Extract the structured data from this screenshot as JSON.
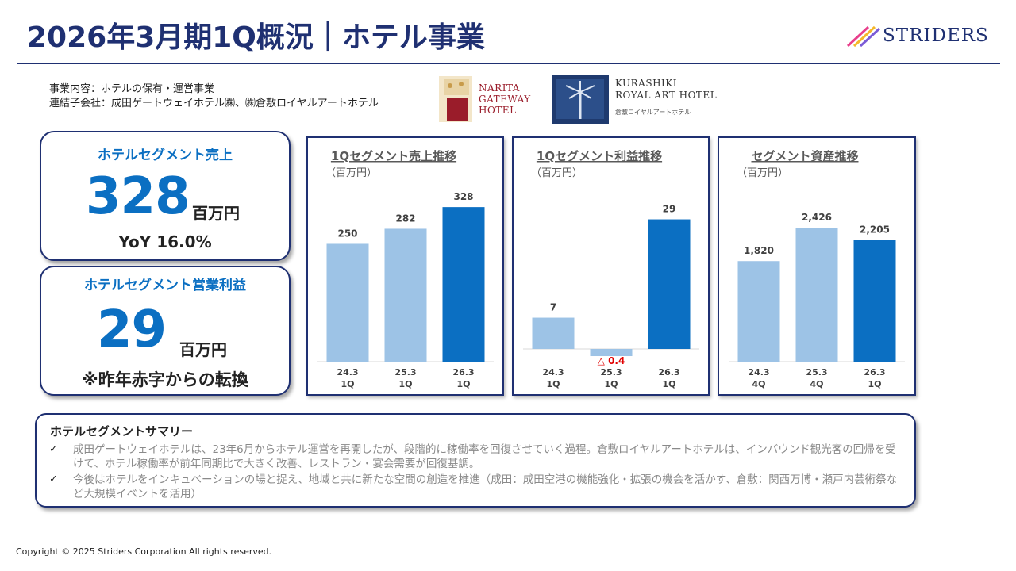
{
  "header": {
    "title": "2026年3月期1Q概況｜ホテル事業",
    "logo_text": "STRIDERS"
  },
  "description": {
    "line1": "事業内容：ホテルの保有・運営事業",
    "line2": "連結子会社：成田ゲートウェイホテル㈱、㈱倉敷ロイヤルアートホテル"
  },
  "hotel_logos": {
    "narita": [
      "NARITA",
      "GATEWAY",
      "HOTEL"
    ],
    "kurashiki": [
      "KURASHIKI",
      "ROYAL ART HOTEL"
    ],
    "kurashiki_sub": "倉敷ロイヤルアートホテル"
  },
  "kpi_sales": {
    "heading": "ホテルセグメント売上",
    "value": "328",
    "unit": "百万円",
    "footnote": "YoY  16.0%"
  },
  "kpi_profit": {
    "heading": "ホテルセグメント営業利益",
    "value": "29",
    "unit": "百万円",
    "footnote": "※昨年赤字からの転換"
  },
  "chart_data": [
    {
      "type": "bar",
      "title": "1Qセグメント売上推移",
      "subtitle": "（百万円）",
      "categories": [
        [
          "24.3",
          "1Q"
        ],
        [
          "25.3",
          "1Q"
        ],
        [
          "26.3",
          "1Q"
        ]
      ],
      "values": [
        250,
        282,
        328
      ],
      "labels": [
        "250",
        "282",
        "328"
      ],
      "colors": [
        "#9dc3e6",
        "#9dc3e6",
        "#0b6fc2"
      ],
      "ylim": [
        0,
        340
      ]
    },
    {
      "type": "bar",
      "title": "1Qセグメント利益推移",
      "subtitle": "（百万円）",
      "categories": [
        [
          "24.3",
          "1Q"
        ],
        [
          "25.3",
          "1Q"
        ],
        [
          "26.3",
          "1Q"
        ]
      ],
      "values": [
        7,
        -0.4,
        29
      ],
      "labels": [
        "7",
        "△ 0.4",
        "29"
      ],
      "colors": [
        "#9dc3e6",
        "#9dc3e6",
        "#0b6fc2"
      ],
      "negative_label_color": "#e00000",
      "ylim": [
        -1,
        33
      ]
    },
    {
      "type": "bar",
      "title": "セグメント資産推移",
      "subtitle": "（百万円）",
      "categories": [
        [
          "24.3",
          "4Q"
        ],
        [
          "25.3",
          "4Q"
        ],
        [
          "26.3",
          "1Q"
        ]
      ],
      "values": [
        1820,
        2426,
        2205
      ],
      "labels": [
        "1,820",
        "2,426",
        "2,205"
      ],
      "colors": [
        "#9dc3e6",
        "#9dc3e6",
        "#0b6fc2"
      ],
      "ylim": [
        0,
        2900
      ]
    }
  ],
  "summary": {
    "title": "ホテルセグメントサマリー",
    "items": [
      "成田ゲートウェイホテルは、23年6月からホテル運営を再開したが、段階的に稼働率を回復させていく過程。倉敷ロイヤルアートホテルは、インバウンド観光客の回帰を受けて、ホテル稼働率が前年同期比で大きく改善、レストラン・宴会需要が回復基調。",
      "今後はホテルをインキュベーションの場と捉え、地域と共に新たな空間の創造を推進（成田：成田空港の機能強化・拡張の機会を活かす、倉敷：関西万博・瀬戸内芸術祭など大規模イベントを活用）"
    ],
    "check_glyph": "✓"
  },
  "footer": {
    "copyright": "Copyright © 2025 Striders Corporation All rights reserved."
  }
}
